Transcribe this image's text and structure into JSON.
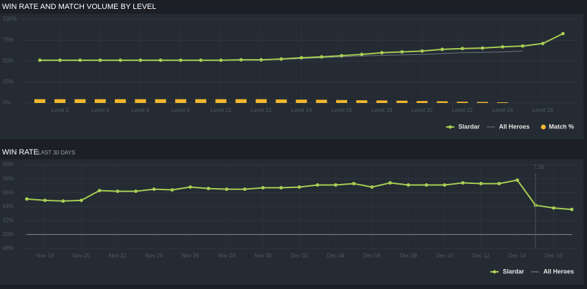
{
  "chart_data": [
    {
      "type": "line",
      "title": "WIN RATE AND MATCH VOLUME BY LEVEL",
      "categories": [
        null,
        "Level 2",
        null,
        "Level 4",
        null,
        "Level 6",
        null,
        "Level 8",
        null,
        "Level 10",
        null,
        "Level 12",
        null,
        "Level 14",
        null,
        "Level 16",
        null,
        "Level 18",
        null,
        "Level 20",
        null,
        "Level 22",
        null,
        "Level 24",
        null,
        "Level 26",
        null
      ],
      "series": [
        {
          "name": "Slardar",
          "color": "#a9cf54",
          "markers": true,
          "values": [
            51,
            51,
            51,
            51,
            51,
            51,
            51,
            51,
            51,
            51,
            51.5,
            51.5,
            52.5,
            54,
            55,
            56.5,
            58,
            60,
            61,
            62,
            64,
            65,
            65.6,
            67,
            68,
            71,
            82.8
          ]
        },
        {
          "name": "All Heroes",
          "color": "#6f7780",
          "markers": false,
          "values": [
            51,
            51,
            51,
            51,
            51,
            51,
            51,
            51,
            51,
            51,
            51,
            51,
            52,
            53,
            54,
            55,
            56,
            57,
            57.5,
            58,
            59,
            60,
            60.5,
            61,
            62,
            null,
            null
          ]
        },
        {
          "name": "Match %",
          "color": "#f5b82e",
          "kind": "bar",
          "values": [
            4.5,
            4.5,
            4.5,
            4.5,
            4.5,
            4.5,
            4.5,
            4.5,
            4.5,
            4.5,
            4.5,
            4.5,
            4.2,
            4,
            3.8,
            3.5,
            3.2,
            3,
            2.7,
            2.3,
            2,
            1.5,
            1.2,
            0.8,
            null,
            null,
            null
          ]
        }
      ],
      "ylim": [
        0,
        100
      ],
      "yticks": [
        {
          "value": 0,
          "label": "0%"
        },
        {
          "value": 25,
          "label": "25%"
        },
        {
          "value": 50,
          "label": "50%"
        },
        {
          "value": 75,
          "label": "75%"
        },
        {
          "value": 100,
          "label": "100%"
        }
      ],
      "grid": true,
      "legend": "bottom-right"
    },
    {
      "type": "line",
      "title": "WIN RATE",
      "subtitle": "LAST 30 DAYS",
      "categories": [
        null,
        "Nov 18",
        null,
        "Nov 20",
        null,
        "Nov 22",
        null,
        "Nov 24",
        null,
        "Nov 26",
        null,
        "Nov 28",
        null,
        "Nov 30",
        null,
        "Dec 02",
        null,
        "Dec 04",
        null,
        "Dec 06",
        null,
        "Dec 08",
        null,
        "Dec 10",
        null,
        "Dec 12",
        null,
        "Dec 14",
        null,
        "Dec 16",
        null
      ],
      "series": [
        {
          "name": "Slardar",
          "color": "#a9cf54",
          "markers": true,
          "values": [
            55.1,
            54.9,
            54.8,
            54.9,
            56.3,
            56.2,
            56.2,
            56.5,
            56.4,
            56.8,
            56.6,
            56.5,
            56.5,
            56.7,
            56.7,
            56.8,
            57.1,
            57.1,
            57.3,
            56.8,
            57.4,
            57.1,
            57.1,
            57.1,
            57.4,
            57.3,
            57.3,
            57.8,
            54.2,
            53.8,
            53.6
          ]
        },
        {
          "name": "All Heroes",
          "color": "#8a9199",
          "markers": false,
          "values": [
            50,
            50,
            50,
            50,
            50,
            50,
            50,
            50,
            50,
            50,
            50,
            50,
            50,
            50,
            50,
            50,
            50,
            50,
            50,
            50,
            50,
            50,
            50,
            50,
            50,
            50,
            50,
            50,
            50,
            50,
            50
          ]
        }
      ],
      "ylim": [
        48,
        60
      ],
      "yticks": [
        {
          "value": 48,
          "label": "48%"
        },
        {
          "value": 50,
          "label": "50%"
        },
        {
          "value": 52,
          "label": "52%"
        },
        {
          "value": 54,
          "label": "54%"
        },
        {
          "value": 56,
          "label": "56%"
        },
        {
          "value": 58,
          "label": "58%"
        },
        {
          "value": 60,
          "label": "60%"
        }
      ],
      "annotations": [
        {
          "text": "7.35",
          "at_index": 28
        }
      ],
      "grid": true,
      "legend": "bottom-right"
    }
  ]
}
